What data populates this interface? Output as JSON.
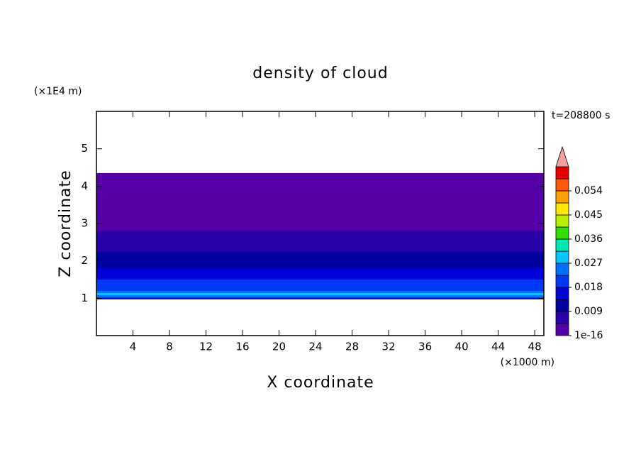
{
  "chart_data": {
    "type": "contour",
    "title": "density of cloud",
    "xlabel": "X coordinate",
    "ylabel": "Z coordinate",
    "x_unit": "(×1000 m)",
    "y_unit": "(×1E4 m)",
    "annotation": "t=208800 s",
    "xlim": [
      0,
      49
    ],
    "xticks": [
      4,
      8,
      12,
      16,
      20,
      24,
      28,
      32,
      36,
      40,
      44,
      48
    ],
    "ylim": [
      0,
      6
    ],
    "yticks": [
      1,
      2,
      3,
      4,
      5
    ],
    "colorbar": {
      "clim": [
        0,
        0.063
      ],
      "ticks": [
        {
          "value": 0,
          "label": "1e-16"
        },
        0.009,
        0.018,
        0.027,
        0.036,
        0.045,
        0.054
      ],
      "colors": [
        "#5500a8",
        "#2a00a8",
        "#0000a0",
        "#0000d8",
        "#0038f8",
        "#0070ff",
        "#00c8ff",
        "#00e8b0",
        "#30e000",
        "#b8f000",
        "#ffe800",
        "#ffa000",
        "#ff5a00",
        "#e80000"
      ],
      "extend_color": "#f4a0a0"
    },
    "field": [
      {
        "z": [
          0.97,
          4.35
        ],
        "level": 0
      },
      {
        "z": [
          0.97,
          2.8
        ],
        "level": 1
      },
      {
        "z": [
          0.97,
          2.25
        ],
        "level": 2
      },
      {
        "z": [
          1.0,
          1.8
        ],
        "level": 3
      },
      {
        "z": [
          1.0,
          1.5
        ],
        "level": 4
      },
      {
        "z": [
          1.02,
          1.2
        ],
        "level": 5
      },
      {
        "z": [
          1.08,
          1.14
        ],
        "level": 6
      }
    ]
  }
}
